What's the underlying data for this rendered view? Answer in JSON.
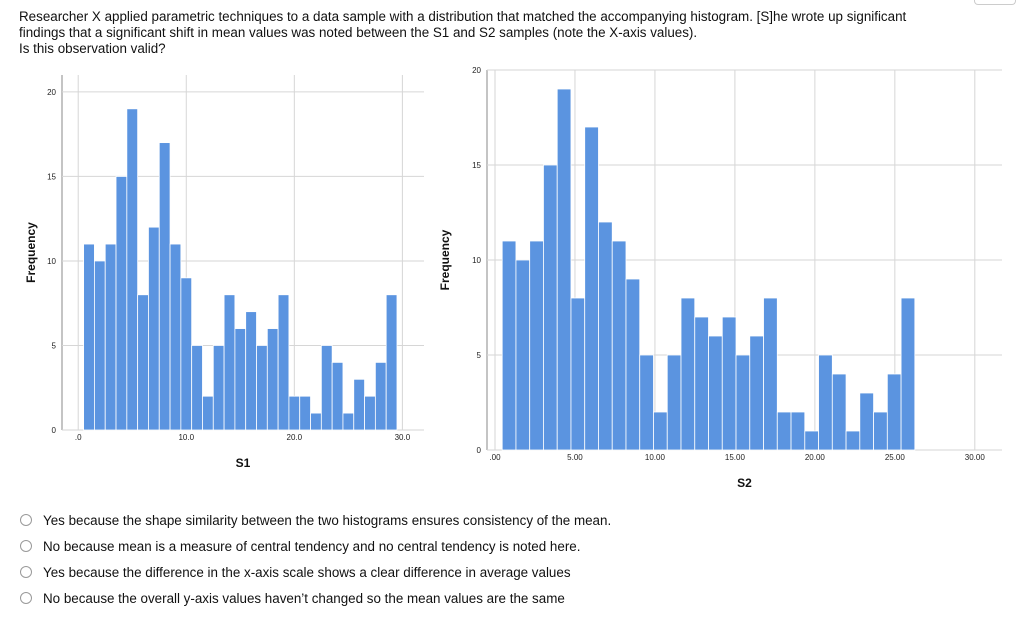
{
  "question": {
    "lines": [
      "Researcher X applied parametric techniques to a data sample with a distribution that matched the accompanying histogram. [S]he wrote up significant",
      "findings that a significant shift in mean values was noted between the S1 and S2 samples (note the X-axis values).",
      "Is this observation valid?"
    ]
  },
  "chart_data": [
    {
      "type": "bar",
      "xlabel": "S1",
      "ylabel": "Frequency",
      "x_tick_labels": [
        ".0",
        "10.0",
        "20.0",
        "30.0"
      ],
      "x_tick_values": [
        0,
        10,
        20,
        30
      ],
      "xlim": [
        -1.5,
        32
      ],
      "y_ticks": [
        0,
        5,
        10,
        15,
        20
      ],
      "ylim": [
        0,
        21
      ],
      "bar_color": "#5b94e0",
      "bin_start": 0.5,
      "bin_width": 1,
      "values": [
        11,
        10,
        11,
        15,
        19,
        8,
        12,
        17,
        11,
        9,
        5,
        2,
        5,
        8,
        6,
        7,
        5,
        6,
        8,
        2,
        2,
        1,
        5,
        4,
        1,
        3,
        2,
        4,
        8
      ]
    },
    {
      "type": "bar",
      "xlabel": "S2",
      "ylabel": "Frequency",
      "x_tick_labels": [
        ".00",
        "5.00",
        "10.00",
        "15.00",
        "20.00",
        "25.00",
        "30.00"
      ],
      "x_tick_values": [
        0,
        5,
        10,
        15,
        20,
        25,
        30
      ],
      "xlim": [
        -0.5,
        31.7
      ],
      "y_ticks": [
        0,
        5,
        10,
        15,
        20
      ],
      "ylim": [
        0,
        20
      ],
      "bar_color": "#5b94e0",
      "bin_start": 0.45,
      "bin_width": 0.86,
      "values": [
        11,
        10,
        11,
        15,
        19,
        8,
        17,
        12,
        11,
        9,
        5,
        2,
        5,
        8,
        7,
        6,
        7,
        5,
        6,
        8,
        2,
        2,
        1,
        5,
        4,
        1,
        3,
        2,
        4,
        8
      ]
    }
  ],
  "options": [
    {
      "label": "Yes because the shape similarity between the two histograms ensures consistency of the mean."
    },
    {
      "label": "No because mean is a measure of central tendency and no central tendency is noted here."
    },
    {
      "label": "Yes because the difference in the x-axis scale shows a clear difference in average values"
    },
    {
      "label": "No because the overall y-axis values haven’t changed so the mean values are the same"
    }
  ]
}
